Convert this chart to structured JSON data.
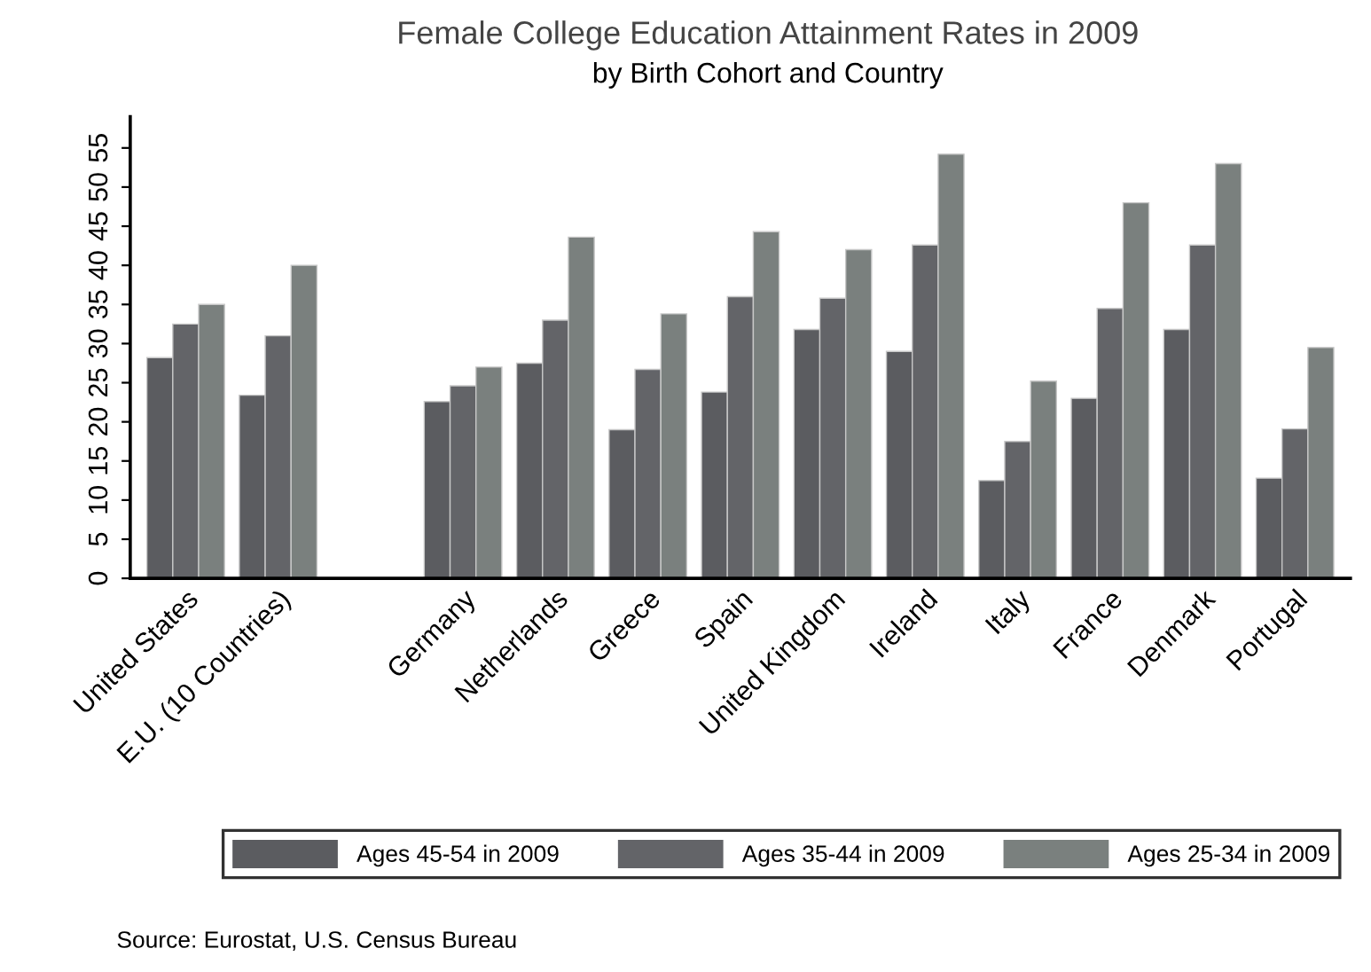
{
  "chart_data": {
    "type": "bar",
    "title": "Female College Education Attainment Rates in 2009",
    "subtitle": "by Birth Cohort and Country",
    "categories": [
      "United States",
      "E.U. (10 Countries)",
      null,
      "Germany",
      "Netherlands",
      "Greece",
      "Spain",
      "United Kingdom",
      "Ireland",
      "Italy",
      "France",
      "Denmark",
      "Portugal"
    ],
    "series": [
      {
        "name": "Ages 45-54 in 2009",
        "color": "#5b5c60",
        "values": [
          28.2,
          23.4,
          null,
          22.6,
          27.5,
          19,
          23.8,
          31.8,
          29,
          12.5,
          23,
          31.8,
          12.8
        ]
      },
      {
        "name": "Ages 35-44 in 2009",
        "color": "#636468",
        "values": [
          32.5,
          31,
          null,
          24.6,
          33,
          26.7,
          36,
          35.8,
          42.6,
          17.5,
          34.5,
          42.6,
          19.1
        ]
      },
      {
        "name": "Ages 25-34 in 2009",
        "color": "#7a807e",
        "values": [
          35,
          40,
          null,
          27,
          43.6,
          33.8,
          44.3,
          42,
          54.2,
          25.2,
          48,
          53,
          29.5
        ]
      }
    ],
    "ylim": [
      0,
      59
    ],
    "yticks": [
      0,
      5,
      10,
      15,
      20,
      25,
      30,
      35,
      40,
      45,
      50,
      55
    ],
    "grid": false,
    "legend": "bottom",
    "annotations": [
      "Source: Eurostat, U.S. Census Bureau"
    ]
  }
}
